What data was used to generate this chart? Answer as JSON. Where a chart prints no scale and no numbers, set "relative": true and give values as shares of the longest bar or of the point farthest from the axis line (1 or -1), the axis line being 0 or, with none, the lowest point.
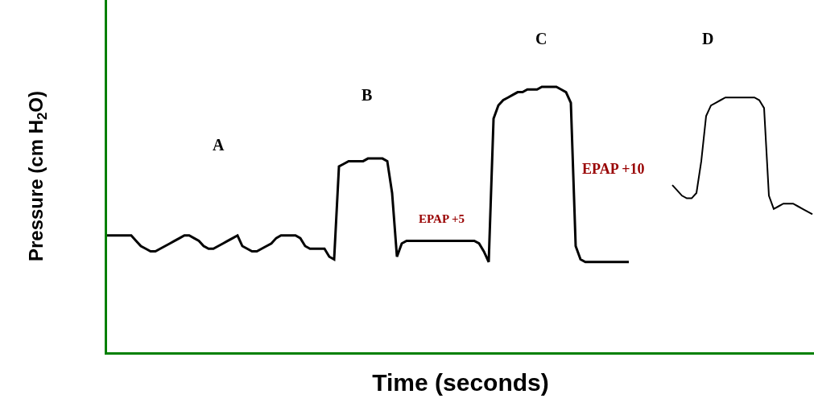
{
  "chart_data": {
    "type": "line",
    "relative": true,
    "xlabel": "Time (seconds)",
    "ylabel": "Pressure (cm H$_{2}$O)",
    "categories": [
      null,
      null,
      null,
      null,
      null,
      null,
      null,
      null,
      null,
      null,
      null,
      null,
      null,
      null,
      null,
      null,
      null,
      null,
      null,
      null,
      null,
      null,
      null,
      null,
      null,
      null,
      null,
      null,
      null,
      null,
      null,
      null,
      null,
      null,
      null,
      null,
      null,
      null,
      null,
      null,
      null,
      null,
      null,
      null,
      null,
      null,
      null,
      null,
      null,
      null,
      null,
      null,
      null,
      null,
      null,
      null,
      null,
      null,
      null,
      null,
      null,
      null,
      null,
      null,
      null,
      null,
      null,
      null,
      null,
      null,
      null,
      null,
      null,
      null,
      null,
      null,
      null,
      null,
      null,
      null,
      null,
      null,
      null,
      null,
      null,
      null,
      null,
      null,
      null,
      null,
      null,
      null,
      null,
      null,
      null,
      null,
      null,
      null,
      null,
      null,
      null,
      null,
      null,
      null,
      null,
      null,
      null,
      null,
      null,
      null,
      null,
      null,
      null,
      null,
      null,
      null,
      null,
      null,
      null,
      null,
      null,
      null,
      null,
      null,
      null,
      null,
      null,
      null,
      null,
      null,
      null,
      null,
      null,
      null,
      null,
      null,
      null,
      null,
      null,
      null,
      null,
      null,
      null,
      null,
      null,
      null,
      null
    ],
    "series": [
      {
        "color": "#000000",
        "values": [
          0.44,
          0.44,
          0.44,
          0.44,
          0.44,
          0.44,
          0.42,
          0.4,
          0.39,
          0.38,
          0.38,
          0.39,
          0.4,
          0.41,
          0.42,
          0.43,
          0.44,
          0.44,
          0.43,
          0.42,
          0.4,
          0.39,
          0.39,
          0.4,
          0.41,
          0.42,
          0.43,
          0.44,
          0.4,
          0.39,
          0.38,
          0.38,
          0.39,
          0.4,
          0.41,
          0.43,
          0.44,
          0.44,
          0.44,
          0.44,
          0.43,
          0.4,
          0.39,
          0.39,
          0.39,
          0.39,
          0.36,
          0.35,
          0.7,
          0.71,
          0.72,
          0.72,
          0.72,
          0.72,
          0.73,
          0.73,
          0.73,
          0.73,
          0.72,
          0.6,
          0.36,
          0.41,
          0.42,
          0.42,
          0.42,
          0.42,
          0.42,
          0.42,
          0.42,
          0.42,
          0.42,
          0.42,
          0.42,
          0.42,
          0.42,
          0.42,
          0.42,
          0.41,
          0.38,
          0.34,
          0.88,
          0.93,
          0.95,
          0.96,
          0.97,
          0.98,
          0.98,
          0.99,
          0.99,
          0.99,
          1.0,
          1.0,
          1.0,
          1.0,
          0.99,
          0.98,
          0.94,
          0.4,
          0.35,
          0.34,
          0.34,
          0.34,
          0.34,
          0.34,
          0.34,
          0.34,
          0.34,
          0.34,
          0.34,
          null,
          null,
          null,
          null,
          null,
          null,
          null,
          null,
          null,
          null,
          null,
          null,
          null,
          null,
          null,
          null,
          null,
          null,
          null,
          null,
          null,
          null,
          null,
          null,
          null,
          null,
          null,
          null,
          null,
          null,
          null,
          null,
          null,
          null,
          null,
          null,
          null,
          null
        ]
      },
      {
        "color": "#000000",
        "values": [
          null,
          null,
          null,
          null,
          null,
          null,
          null,
          null,
          null,
          null,
          null,
          null,
          null,
          null,
          null,
          null,
          null,
          null,
          null,
          null,
          null,
          null,
          null,
          null,
          null,
          null,
          null,
          null,
          null,
          null,
          null,
          null,
          null,
          null,
          null,
          null,
          null,
          null,
          null,
          null,
          null,
          null,
          null,
          null,
          null,
          null,
          null,
          null,
          null,
          null,
          null,
          null,
          null,
          null,
          null,
          null,
          null,
          null,
          null,
          null,
          null,
          null,
          null,
          null,
          null,
          null,
          null,
          null,
          null,
          null,
          null,
          null,
          null,
          null,
          null,
          null,
          null,
          null,
          null,
          null,
          null,
          null,
          null,
          null,
          null,
          null,
          null,
          null,
          null,
          null,
          null,
          null,
          null,
          null,
          null,
          null,
          null,
          null,
          null,
          null,
          null,
          null,
          null,
          null,
          null,
          null,
          null,
          null,
          null,
          null,
          null,
          null,
          null,
          null,
          null,
          null,
          null,
          0.63,
          0.61,
          0.59,
          0.58,
          0.58,
          0.6,
          0.72,
          0.89,
          0.93,
          0.94,
          0.95,
          0.96,
          0.96,
          0.96,
          0.96,
          0.96,
          0.96,
          0.96,
          0.95,
          0.92,
          0.59,
          0.54,
          0.55,
          0.56,
          0.56,
          0.56,
          0.55,
          0.54,
          0.53,
          0.52
        ]
      }
    ],
    "annotations": [
      "A",
      "B",
      "C",
      "D",
      "EPAP +5",
      "EPAP +10"
    ]
  }
}
